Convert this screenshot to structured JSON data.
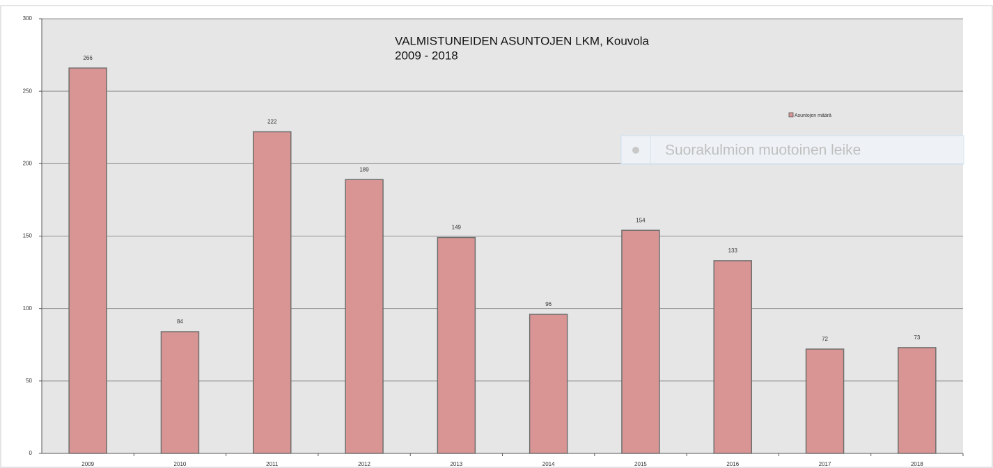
{
  "chart_data": {
    "type": "bar",
    "title": "VALMISTUNEIDEN ASUNTOJEN LKM, Kouvola",
    "subtitle": "2009 - 2018",
    "categories": [
      "2009",
      "2010",
      "2011",
      "2012",
      "2013",
      "2014",
      "2015",
      "2016",
      "2017",
      "2018"
    ],
    "series": [
      {
        "name": "Asuntojen määrä",
        "color": "#d99594",
        "values": [
          266,
          84,
          222,
          189,
          149,
          96,
          154,
          133,
          72,
          73
        ]
      }
    ],
    "ylim": [
      0,
      300
    ],
    "yticks": [
      0,
      50,
      100,
      150,
      200,
      250,
      300
    ],
    "grid": true,
    "annotations": [
      "Suorakulmion muotoinen leike"
    ]
  }
}
